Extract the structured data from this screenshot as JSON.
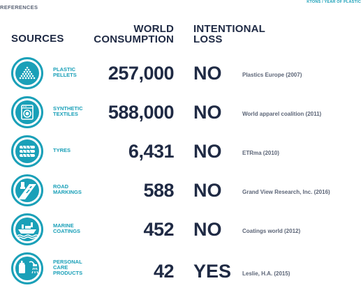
{
  "headers": {
    "sources": "SOURCES",
    "world_line1": "WORLD",
    "world_line2": "CONSUMPTION",
    "world_unit": "KTONS / YEAR OF PLASTIC",
    "loss_line1": "INTENTIONAL",
    "loss_line2": "LOSS",
    "references": "REFERENCES"
  },
  "colors": {
    "accent": "#1aa0b8",
    "text_dark": "#1f2a44",
    "text_ref": "#5c6577"
  },
  "rows": [
    {
      "icon": "plastic-pellets-icon",
      "label_lines": [
        "PLASTIC",
        "PELLETS"
      ],
      "value": "257,000",
      "loss": "NO",
      "reference": "Plastics Europe (2007)"
    },
    {
      "icon": "washing-machine-icon",
      "label_lines": [
        "SYNTHETIC",
        "TEXTILES"
      ],
      "value": "588,000",
      "loss": "NO",
      "reference": "World apparel coalition (2011)"
    },
    {
      "icon": "tyres-icon",
      "label_lines": [
        "TYRES"
      ],
      "value": "6,431",
      "loss": "NO",
      "reference": "ETRma (2010)"
    },
    {
      "icon": "road-markings-icon",
      "label_lines": [
        "ROAD",
        "MARKINGS"
      ],
      "value": "588",
      "loss": "NO",
      "reference": "Grand View Research, Inc. (2016)"
    },
    {
      "icon": "marine-coatings-icon",
      "label_lines": [
        "MARINE",
        "COATINGS"
      ],
      "value": "452",
      "loss": "NO",
      "reference": "Coatings world (2012)"
    },
    {
      "icon": "personal-care-icon",
      "label_lines": [
        "PERSONAL",
        "CARE",
        "PRODUCTS"
      ],
      "value": "42",
      "loss": "YES",
      "reference": "Leslie, H.A. (2015)"
    }
  ]
}
